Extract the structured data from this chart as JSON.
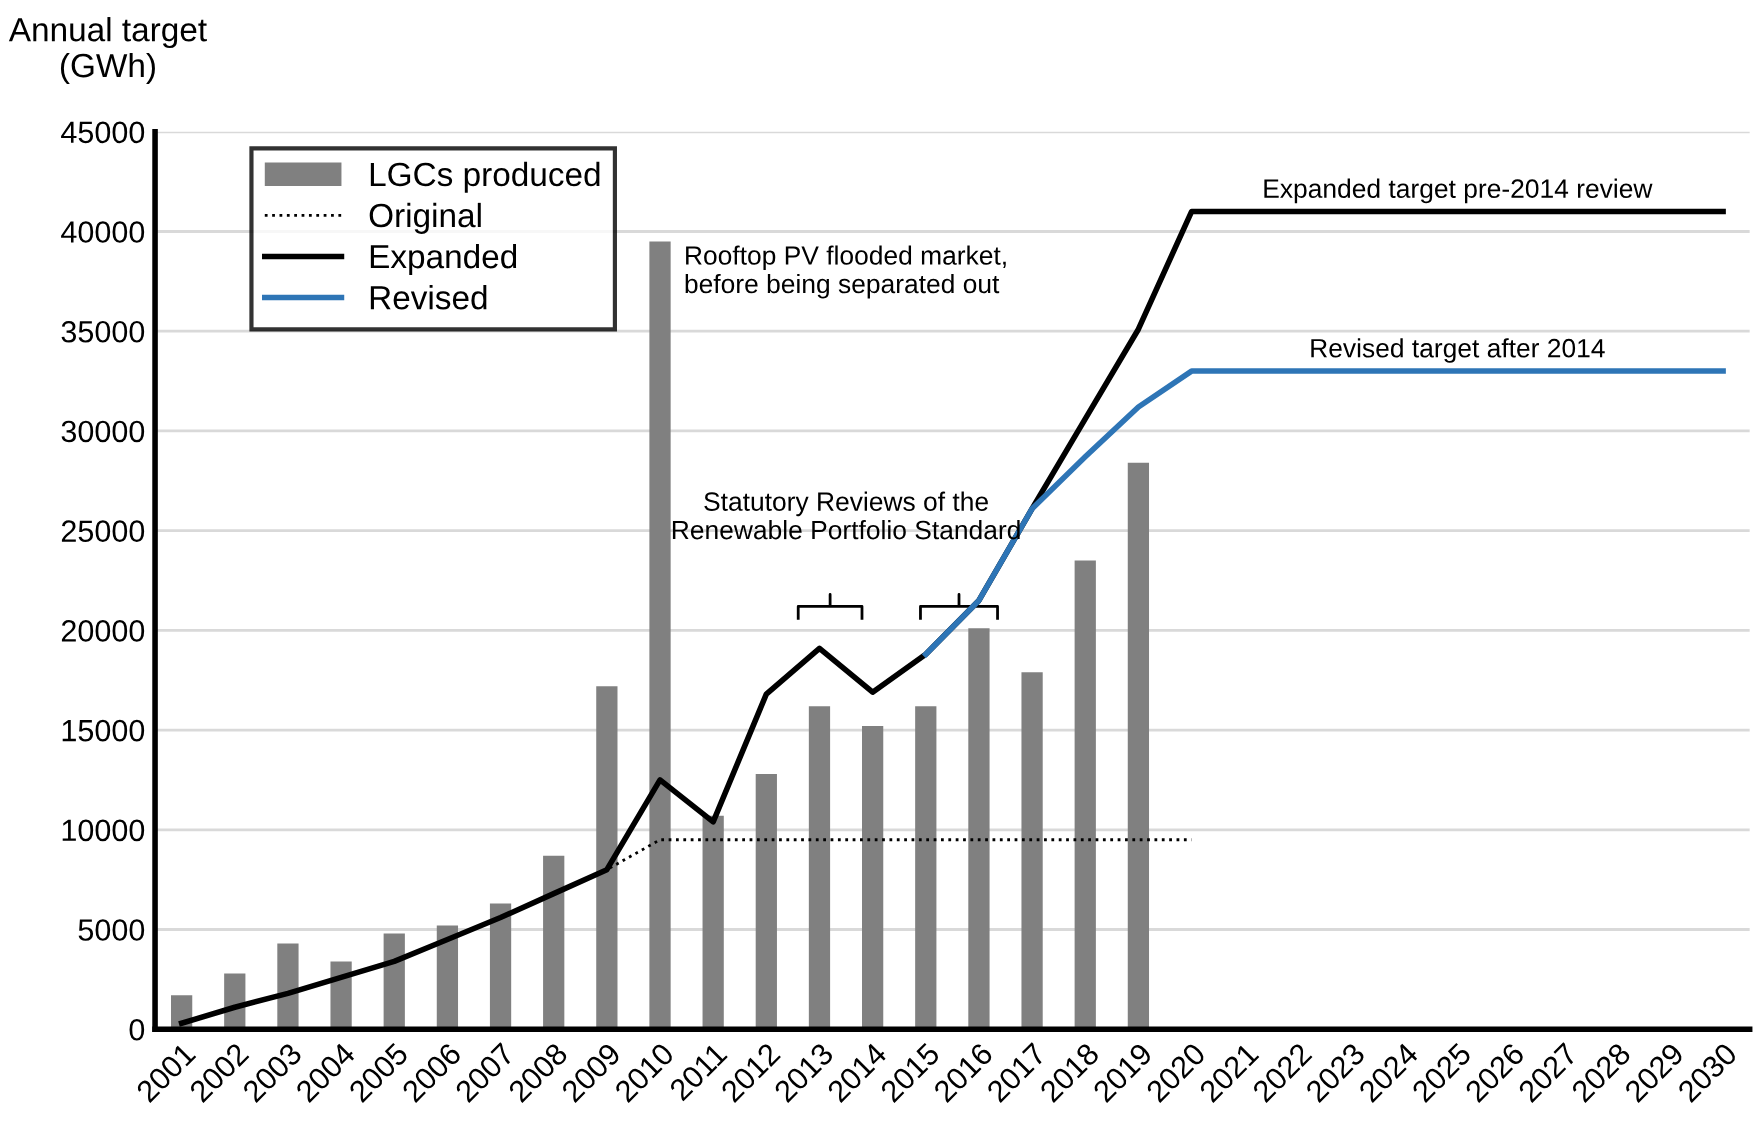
{
  "chart_data": {
    "type": "bar",
    "ylabel": "Annual target\n(GWh)",
    "categories": [
      "2001",
      "2002",
      "2003",
      "2004",
      "2005",
      "2006",
      "2007",
      "2008",
      "2009",
      "2010",
      "2011",
      "2012",
      "2013",
      "2014",
      "2015",
      "2016",
      "2017",
      "2018",
      "2019",
      "2020",
      "2021",
      "2022",
      "2023",
      "2024",
      "2025",
      "2026",
      "2027",
      "2028",
      "2029",
      "2030"
    ],
    "series": [
      {
        "name": "LGCs produced",
        "color": "#808080",
        "values": [
          1700,
          2800,
          4300,
          3400,
          4800,
          5200,
          6300,
          8700,
          17200,
          39500,
          10700,
          12800,
          16200,
          15200,
          16200,
          20100,
          17900,
          23500,
          28400,
          null,
          null,
          null,
          null,
          null,
          null,
          null,
          null,
          null,
          null,
          null
        ]
      },
      {
        "name": "Original",
        "type": "line",
        "line_style": "dotted",
        "color": "#000000",
        "values": [
          300,
          1100,
          1800,
          2600,
          3400,
          4500,
          5600,
          6800,
          8000,
          9500,
          9500,
          9500,
          9500,
          9500,
          9500,
          9500,
          9500,
          9500,
          9500,
          9500,
          null,
          null,
          null,
          null,
          null,
          null,
          null,
          null,
          null,
          null
        ]
      },
      {
        "name": "Expanded",
        "type": "line",
        "line_style": "solid",
        "color": "#000000",
        "values": [
          300,
          1100,
          1800,
          2600,
          3400,
          4500,
          5600,
          6800,
          8000,
          12500,
          10400,
          16800,
          19100,
          16900,
          18800,
          21500,
          26100,
          30600,
          35100,
          41000,
          41000,
          41000,
          41000,
          41000,
          41000,
          41000,
          41000,
          41000,
          41000,
          41000
        ]
      },
      {
        "name": "Revised",
        "type": "line",
        "line_style": "solid",
        "color": "#2e75b6",
        "values": [
          null,
          null,
          null,
          null,
          null,
          null,
          null,
          null,
          null,
          null,
          null,
          null,
          null,
          null,
          18800,
          21500,
          26100,
          28700,
          31200,
          33000,
          33000,
          33000,
          33000,
          33000,
          33000,
          33000,
          33000,
          33000,
          33000,
          33000
        ]
      }
    ],
    "ylim": [
      0,
      45000
    ],
    "yticks": [
      0,
      5000,
      10000,
      15000,
      20000,
      25000,
      30000,
      35000,
      40000,
      45000
    ],
    "grid": "y",
    "legend": "top left",
    "marker": "none",
    "annotations": [
      {
        "text": "Rooftop PV flooded market,\nbefore being separated out",
        "x": "2010",
        "y": 39500
      },
      "Statutory Reviews of the\nRenewable Portfolio Standard",
      {
        "text": "Expanded target pre-2014 review",
        "x": "2025",
        "y": 41000
      },
      {
        "text": "Revised target after 2014",
        "x": "2025",
        "y": 33000
      }
    ]
  }
}
